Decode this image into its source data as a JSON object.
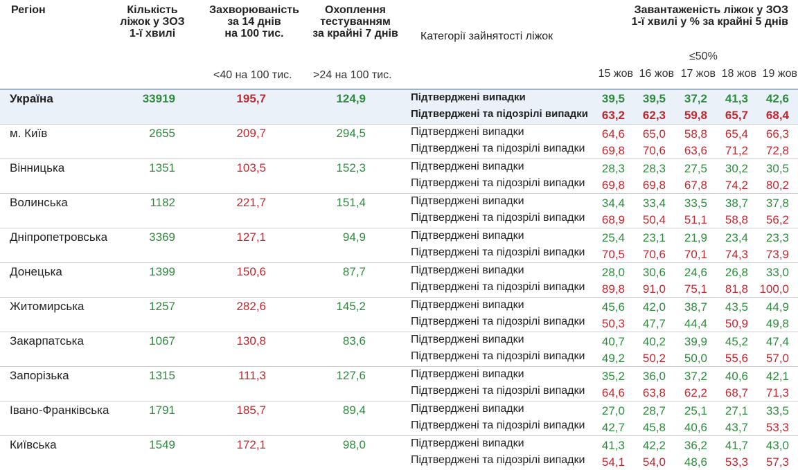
{
  "header": {
    "region": "Регіон",
    "beds": [
      "Кількість",
      "ліжок у ЗОЗ",
      "1-ї хвилі"
    ],
    "incidence": [
      "Захворюваність",
      "за 14 днів",
      "на 100 тис."
    ],
    "coverage": [
      "Охоплення",
      "тестуванням",
      "за крайні 7 днів"
    ],
    "categories": "Категорії зайнятості ліжок",
    "load": [
      "Завантаженість ліжок у ЗОЗ",
      "1-ї хвилі у % за крайні 5 днів"
    ],
    "threshold_incidence": "<40 на 100 тис.",
    "threshold_coverage": ">24 на 100 тис.",
    "threshold_load": "≤50%",
    "dates": [
      "15 жов",
      "16 жов",
      "17 жов",
      "18 жов",
      "19 жов"
    ]
  },
  "ukraine": {
    "name": "Україна",
    "beds": "33919",
    "incidence": "195,7",
    "coverage": "124,9",
    "cat1": "Підтверджені випадки",
    "cat2": "Підтверджені та підозрілі випадки",
    "confirmed": [
      "39,5",
      "39,5",
      "37,2",
      "41,3",
      "42,6"
    ],
    "suspected": [
      "63,2",
      "62,3",
      "59,8",
      "65,7",
      "68,4"
    ]
  },
  "regions": [
    {
      "name": "м. Київ",
      "beds": "2655",
      "incidence": "209,7",
      "coverage": "294,5",
      "cat1": "Підтверджені випадки",
      "cat2": "Підтверджені та підозрілі випадки",
      "confirmed": [
        "64,6",
        "65,0",
        "58,8",
        "65,4",
        "66,3"
      ],
      "suspected": [
        "69,8",
        "70,6",
        "63,6",
        "71,2",
        "72,8"
      ]
    },
    {
      "name": "Вінницька",
      "beds": "1351",
      "incidence": "103,5",
      "coverage": "152,3",
      "cat1": "Підтверджені випадки",
      "cat2": "Підтверджені та підозрілі випадки",
      "confirmed": [
        "28,3",
        "28,3",
        "27,5",
        "30,2",
        "30,5"
      ],
      "suspected": [
        "69,8",
        "69,8",
        "67,8",
        "74,2",
        "80,2"
      ]
    },
    {
      "name": "Волинська",
      "beds": "1182",
      "incidence": "221,7",
      "coverage": "151,4",
      "cat1": "Підтверджені випадки",
      "cat2": "Підтверджені та підозрілі випадки",
      "confirmed": [
        "34,4",
        "33,4",
        "33,5",
        "38,7",
        "37,8"
      ],
      "suspected": [
        "68,9",
        "50,4",
        "51,1",
        "58,8",
        "56,2"
      ]
    },
    {
      "name": "Дніпропетровська",
      "beds": "3369",
      "incidence": "127,1",
      "coverage": "94,9",
      "cat1": "Підтверджені випадки",
      "cat2": "Підтверджені та підозрілі випадки",
      "confirmed": [
        "25,4",
        "23,1",
        "21,9",
        "23,4",
        "23,3"
      ],
      "suspected": [
        "70,5",
        "70,6",
        "70,1",
        "74,3",
        "73,9"
      ]
    },
    {
      "name": "Донецька",
      "beds": "1399",
      "incidence": "150,6",
      "coverage": "87,7",
      "cat1": "Підтверджені випадки",
      "cat2": "Підтверджені та підозрілі випадки",
      "confirmed": [
        "28,0",
        "30,6",
        "24,6",
        "26,8",
        "33,0"
      ],
      "suspected": [
        "89,8",
        "91,0",
        "75,1",
        "81,8",
        "100,0"
      ]
    },
    {
      "name": "Житомирська",
      "beds": "1257",
      "incidence": "282,6",
      "coverage": "145,2",
      "cat1": "Підтверджені випадки",
      "cat2": "Підтверджені та підозрілі випадки",
      "confirmed": [
        "45,6",
        "42,0",
        "38,7",
        "43,5",
        "44,9"
      ],
      "suspected": [
        "50,3",
        "47,7",
        "44,4",
        "50,9",
        "49,8"
      ]
    },
    {
      "name": "Закарпатська",
      "beds": "1067",
      "incidence": "130,8",
      "coverage": "83,6",
      "cat1": "Підтверджені випадки",
      "cat2": "Підтверджені та підозрілі випадки",
      "confirmed": [
        "40,7",
        "40,2",
        "39,9",
        "45,2",
        "47,4"
      ],
      "suspected": [
        "49,2",
        "50,2",
        "50,0",
        "55,6",
        "57,0"
      ]
    },
    {
      "name": "Запорізька",
      "beds": "1315",
      "incidence": "111,3",
      "coverage": "127,6",
      "cat1": "Підтверджені випадки",
      "cat2": "Підтверджені та підозрілі випадки",
      "confirmed": [
        "35,2",
        "36,0",
        "37,2",
        "40,6",
        "42,1"
      ],
      "suspected": [
        "64,6",
        "63,8",
        "62,2",
        "68,7",
        "71,3"
      ]
    },
    {
      "name": "Івано-Франківська",
      "beds": "1791",
      "incidence": "185,7",
      "coverage": "89,4",
      "cat1": "Підтверджені випадки",
      "cat2": "Підтверджені та підозрілі випадки",
      "confirmed": [
        "27,0",
        "28,7",
        "25,1",
        "27,1",
        "33,5"
      ],
      "suspected": [
        "42,7",
        "45,8",
        "40,6",
        "43,7",
        "53,3"
      ]
    },
    {
      "name": "Київська",
      "beds": "1549",
      "incidence": "172,1",
      "coverage": "98,0",
      "cat1": "Підтверджені випадки",
      "cat2": "Підтверджені та підозрілі випадки",
      "confirmed": [
        "41,3",
        "42,2",
        "36,2",
        "41,7",
        "43,0"
      ],
      "suspected": [
        "54,1",
        "54,0",
        "48,6",
        "53,3",
        "57,3"
      ]
    }
  ],
  "colors": {
    "good": "#2e8b3e",
    "bad": "#c0282f",
    "highlight": "#eaf1f9"
  }
}
